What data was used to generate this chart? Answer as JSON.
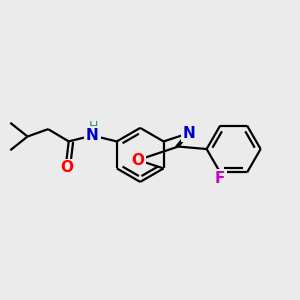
{
  "bg_color": "#ebebeb",
  "bond_color": "#000000",
  "bond_width": 1.6,
  "atom_colors": {
    "N": "#0000cc",
    "O": "#ff0000",
    "F": "#cc00cc",
    "H": "#338899"
  },
  "font_size": 11,
  "xlim": [
    -2.8,
    3.2
  ],
  "ylim": [
    -1.8,
    1.8
  ]
}
